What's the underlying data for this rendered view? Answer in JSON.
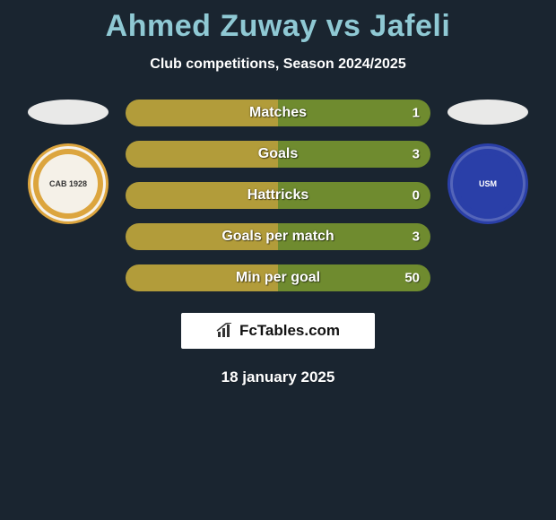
{
  "background_color": "#1a2530",
  "title": {
    "text": "Ahmed Zuway vs Jafeli",
    "color": "#8fc9d4",
    "fontsize": 34
  },
  "subtitle": {
    "text": "Club competitions, Season 2024/2025",
    "color": "#ffffff",
    "fontsize": 16
  },
  "left_side": {
    "oval_color": "#e9e9e8",
    "badge": {
      "bg_color": "#dca53e",
      "inner_color": "#f5f1e8",
      "text": "CAB 1928",
      "text_color": "#333333"
    }
  },
  "right_side": {
    "oval_color": "#e9e9e8",
    "badge": {
      "bg_color": "#2a3fa8",
      "inner_color": "#2a3fa8",
      "text": "USM",
      "text_color": "#ffffff"
    }
  },
  "bars": {
    "height": 30,
    "border_radius": 15,
    "left_color": "#b29c3a",
    "right_color": "#6f8b2f",
    "label_color": "#ffffff",
    "value_color": "#ffffff",
    "label_fontsize": 16,
    "value_fontsize": 15,
    "items": [
      {
        "label": "Matches",
        "left_val": "",
        "right_val": "1",
        "left_pct": 50,
        "right_pct": 50
      },
      {
        "label": "Goals",
        "left_val": "",
        "right_val": "3",
        "left_pct": 50,
        "right_pct": 50
      },
      {
        "label": "Hattricks",
        "left_val": "",
        "right_val": "0",
        "left_pct": 50,
        "right_pct": 50
      },
      {
        "label": "Goals per match",
        "left_val": "",
        "right_val": "3",
        "left_pct": 50,
        "right_pct": 50
      },
      {
        "label": "Min per goal",
        "left_val": "",
        "right_val": "50",
        "left_pct": 50,
        "right_pct": 50
      }
    ]
  },
  "logo": {
    "text": "FcTables.com",
    "bg_color": "#ffffff",
    "text_color": "#111111",
    "icon_color": "#333333"
  },
  "date": {
    "text": "18 january 2025",
    "color": "#ffffff",
    "fontsize": 17
  }
}
